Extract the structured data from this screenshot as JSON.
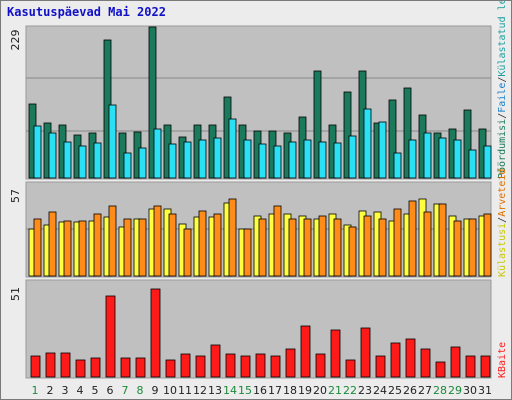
{
  "title": "Kasutuspäevad Mai 2022",
  "colors": {
    "page_bg": "#ececec",
    "panel_bg": "#c0c0c0",
    "gridline": "#888888",
    "title": "#1010c8",
    "hits": "#1b7a5c",
    "files": "#29e0f5",
    "pages": "#ff8c1a",
    "visits": "#ffff40",
    "kbytes": "#ff1a1a",
    "weekend_day": "#1a8a3a",
    "weekday_day": "#222222"
  },
  "chart_data": [
    {
      "type": "bar",
      "panel": "top",
      "ylim": [
        0,
        229
      ],
      "y_tick_label": "229",
      "right_labels": [
        {
          "text": "Pöördumisi",
          "color": "#1b7a5c"
        },
        {
          "text": "/",
          "color": "#333333"
        },
        {
          "text": "Faile",
          "color": "#1a80c8"
        },
        {
          "text": "/",
          "color": "#333333"
        },
        {
          "text": "Külastatud lehti",
          "color": "#1aa0a0"
        }
      ],
      "categories": [
        "1",
        "2",
        "3",
        "4",
        "5",
        "6",
        "7",
        "8",
        "9",
        "10",
        "11",
        "12",
        "13",
        "14",
        "15",
        "16",
        "17",
        "18",
        "19",
        "20",
        "21",
        "22",
        "23",
        "24",
        "25",
        "26",
        "27",
        "28",
        "29",
        "30",
        "31"
      ],
      "series": [
        {
          "key": "hits",
          "values": [
            112,
            83,
            80,
            65,
            68,
            210,
            68,
            70,
            229,
            80,
            62,
            80,
            80,
            123,
            80,
            72,
            72,
            68,
            92,
            162,
            80,
            130,
            162,
            83,
            118,
            137,
            95,
            68,
            75,
            103,
            75
          ]
        },
        {
          "key": "files",
          "values": [
            79,
            69,
            55,
            48,
            53,
            111,
            38,
            45,
            75,
            52,
            55,
            58,
            60,
            90,
            58,
            52,
            48,
            55,
            58,
            55,
            53,
            64,
            105,
            85,
            38,
            58,
            68,
            60,
            58,
            43,
            48
          ]
        }
      ]
    },
    {
      "type": "bar",
      "panel": "middle",
      "ylim": [
        0,
        57
      ],
      "y_tick_label": "57",
      "right_labels": [
        {
          "text": "Külastusi",
          "color": "#c8c800"
        },
        {
          "text": "/",
          "color": "#333333"
        },
        {
          "text": "Arveteid",
          "color": "#e07000"
        }
      ],
      "categories": [
        "1",
        "2",
        "3",
        "4",
        "5",
        "6",
        "7",
        "8",
        "9",
        "10",
        "11",
        "12",
        "13",
        "14",
        "15",
        "16",
        "17",
        "18",
        "19",
        "20",
        "21",
        "22",
        "23",
        "24",
        "25",
        "26",
        "27",
        "28",
        "29",
        "30",
        "31"
      ],
      "series": [
        {
          "key": "visits",
          "values": [
            29,
            31,
            33,
            33,
            34,
            36,
            30,
            35,
            41,
            41,
            32,
            36,
            36,
            45,
            29,
            37,
            38,
            38,
            37,
            35,
            38,
            31,
            40,
            39,
            34,
            38,
            47,
            44,
            37,
            35,
            37
          ]
        },
        {
          "key": "pages",
          "values": [
            35,
            39,
            34,
            34,
            38,
            43,
            35,
            35,
            43,
            38,
            29,
            40,
            38,
            47,
            29,
            35,
            43,
            35,
            35,
            37,
            35,
            30,
            37,
            35,
            41,
            46,
            39,
            44,
            34,
            35,
            38
          ]
        }
      ]
    },
    {
      "type": "bar",
      "panel": "bottom",
      "ylim": [
        0,
        51
      ],
      "y_tick_label": "51",
      "right_labels": [
        {
          "text": "KBaite",
          "color": "#ff1a1a"
        }
      ],
      "categories": [
        "1",
        "2",
        "3",
        "4",
        "5",
        "6",
        "7",
        "8",
        "9",
        "10",
        "11",
        "12",
        "13",
        "14",
        "15",
        "16",
        "17",
        "18",
        "19",
        "20",
        "21",
        "22",
        "23",
        "24",
        "25",
        "26",
        "27",
        "28",
        "29",
        "30",
        "31"
      ],
      "series": [
        {
          "key": "kbytes",
          "values": [
            11,
            13,
            13,
            9,
            10,
            43,
            10,
            10,
            47,
            9,
            12,
            11,
            17,
            12,
            11,
            12,
            11,
            15,
            27,
            12,
            25,
            9,
            26,
            11,
            18,
            20,
            15,
            8,
            16,
            11,
            11
          ]
        }
      ]
    }
  ],
  "weekend_days": [
    "1",
    "7",
    "8",
    "14",
    "15",
    "21",
    "22",
    "28",
    "29"
  ]
}
